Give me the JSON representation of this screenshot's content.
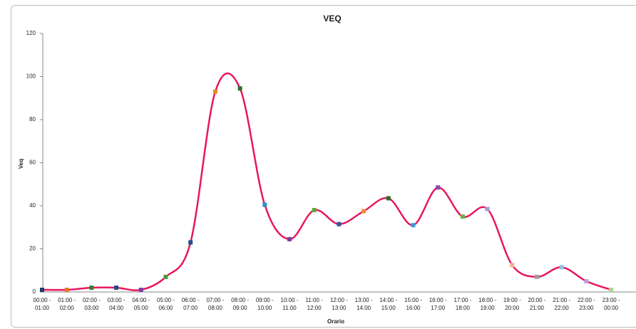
{
  "chart_data": {
    "type": "line",
    "title": "VEQ",
    "x_label": "Orario",
    "y_label": "Veq",
    "categories": [
      "00:00 - 01:00",
      "01:00 - 02:00",
      "02:00 - 03:00",
      "03:00 - 04:00",
      "04:00 - 05:00",
      "05:00 - 06:00",
      "06:00 - 07:00",
      "07:00 - 08:00",
      "08:00 - 09:00",
      "09:00 - 10:00",
      "10:00 - 11:00",
      "11:00 - 12:00",
      "12:00 - 13:00",
      "13:00 - 14:00",
      "14:00 - 15:00",
      "15:00 - 16:00",
      "16:00 - 17:00",
      "17:00 - 18:00",
      "18:00 - 19:00",
      "19:00 - 20:00",
      "20:00 - 21:00",
      "21:00 - 22:00",
      "22:00 - 23:00",
      "23:00 - 00:00"
    ],
    "values": [
      1,
      1,
      2,
      2,
      1,
      7,
      23,
      93,
      94.5,
      40.5,
      24.5,
      38,
      31.5,
      37.5,
      43.5,
      31,
      48.5,
      35,
      38.5,
      12.5,
      7,
      11.5,
      5,
      1
    ],
    "color": "#e8175d",
    "marker_colors": [
      "#1f3a6e",
      "#e07b2a",
      "#3a7d2c",
      "#1f4e8c",
      "#7b3fa0",
      "#4a9a3a",
      "#1f4e8c",
      "#e8892e",
      "#2e6b2a",
      "#2e8fc4",
      "#7b3fa0",
      "#5aa83a",
      "#2e5d9a",
      "#f08a3a",
      "#2e6b2a",
      "#3a9ad4",
      "#8a4ab0",
      "#6ab04a",
      "#a89ad4",
      "#f4b090",
      "#a0a0a0",
      "#8ac4e4",
      "#b8a0d8",
      "#a8d890"
    ],
    "ylim": [
      0,
      120
    ],
    "yticks": [
      0,
      20,
      40,
      60,
      80,
      100,
      120
    ],
    "grid": false
  }
}
